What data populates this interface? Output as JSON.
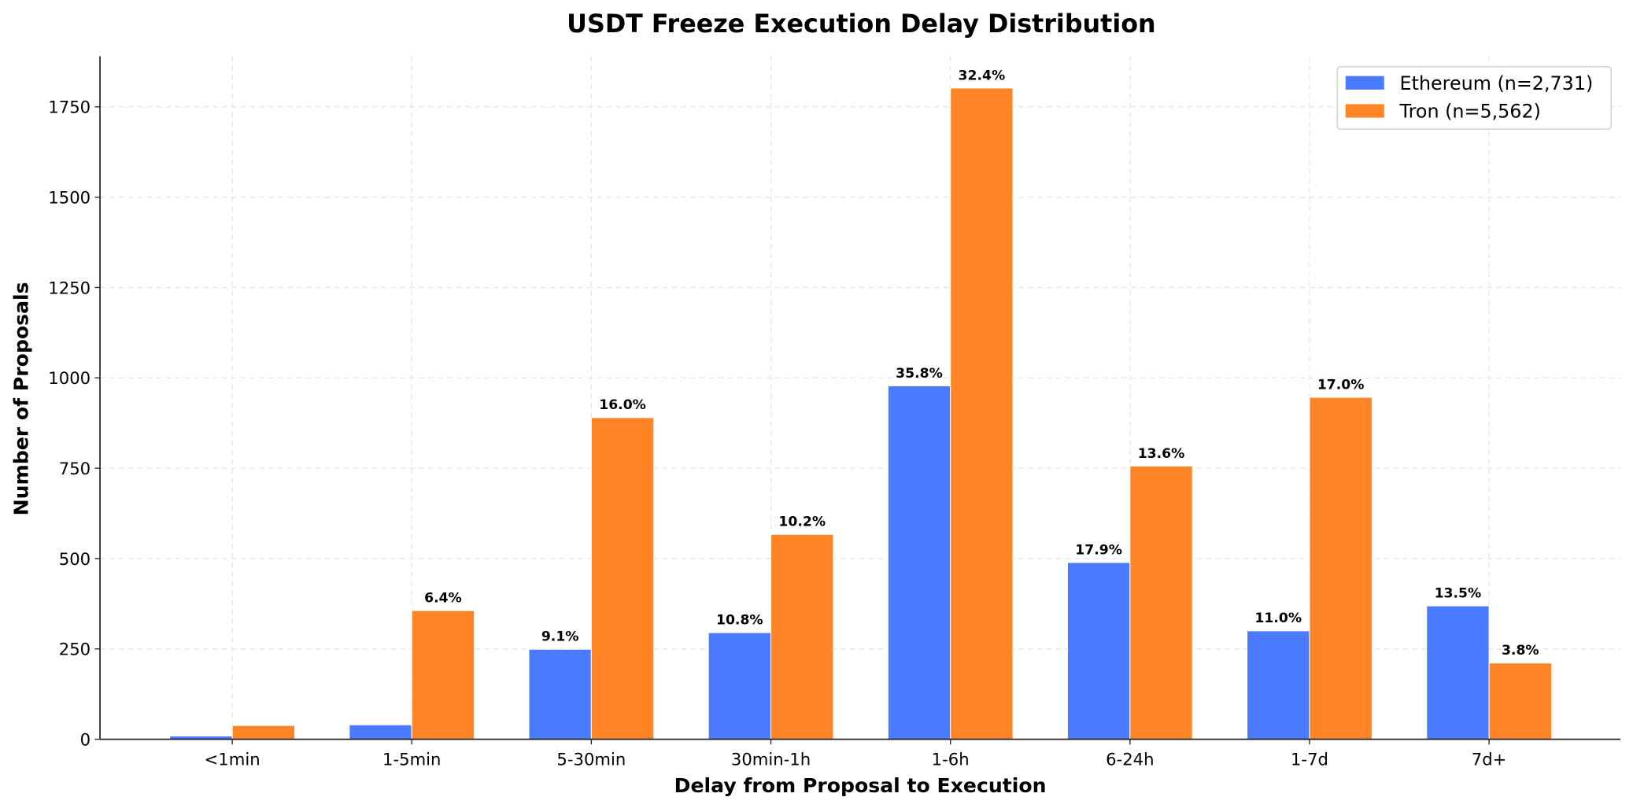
{
  "chart_data": {
    "type": "bar",
    "title": "USDT Freeze Execution Delay Distribution",
    "xlabel": "Delay from Proposal to Execution",
    "ylabel": "Number of Proposals",
    "categories": [
      "<1min",
      "1-5min",
      "5-30min",
      "30min-1h",
      "1-6h",
      "6-24h",
      "1-7d",
      "7d+"
    ],
    "ylim": [
      0,
      1890
    ],
    "yticks": [
      "0",
      "250",
      "500",
      "750",
      "1000",
      "1250",
      "1500",
      "1750"
    ],
    "grid": true,
    "legend_position": "top-right",
    "series": [
      {
        "name": "Ethereum (n=2,731)",
        "color": "#4a7bff",
        "values": [
          9,
          40,
          249,
          295,
          978,
          489,
          300,
          369
        ],
        "labels": [
          "",
          "",
          "9.1%",
          "10.8%",
          "35.8%",
          "17.9%",
          "11.0%",
          "13.5%"
        ]
      },
      {
        "name": "Tron (n=5,562)",
        "color": "#ff8426",
        "values": [
          38,
          356,
          890,
          567,
          1802,
          756,
          946,
          211
        ],
        "labels": [
          "",
          "6.4%",
          "16.0%",
          "10.2%",
          "32.4%",
          "13.6%",
          "17.0%",
          "3.8%"
        ]
      }
    ]
  }
}
